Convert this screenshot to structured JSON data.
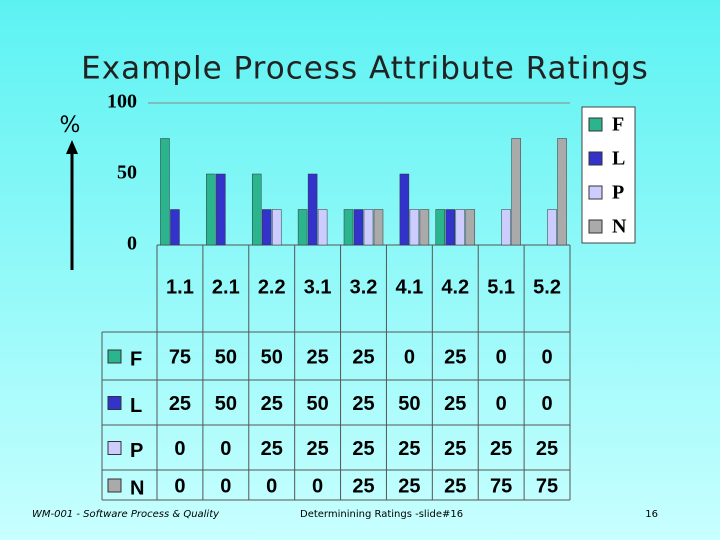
{
  "chart_data": {
    "type": "bar",
    "title": "Example Process Attribute Ratings",
    "y_label": "%",
    "categories": [
      "1.1",
      "2.1",
      "2.2",
      "3.1",
      "3.2",
      "4.1",
      "4.2",
      "5.1",
      "5.2"
    ],
    "series": [
      {
        "name": "F",
        "color": "#2bb58e",
        "values": [
          75,
          50,
          50,
          25,
          25,
          0,
          25,
          0,
          0
        ]
      },
      {
        "name": "L",
        "color": "#3333cc",
        "values": [
          25,
          50,
          25,
          50,
          25,
          50,
          25,
          0,
          0
        ]
      },
      {
        "name": "P",
        "color": "#ccccff",
        "values": [
          0,
          0,
          25,
          25,
          25,
          25,
          25,
          25,
          25
        ]
      },
      {
        "name": "N",
        "color": "#aaaaaa",
        "values": [
          0,
          0,
          0,
          0,
          25,
          25,
          25,
          75,
          75
        ]
      }
    ],
    "ylim": [
      0,
      100
    ],
    "yticks": [
      0,
      50,
      100
    ],
    "grid": false,
    "legend": "right"
  },
  "footer": {
    "left": "WM-001 - Software Process & Quality",
    "center": "Determinining Ratings -slide#16",
    "right": "16"
  }
}
